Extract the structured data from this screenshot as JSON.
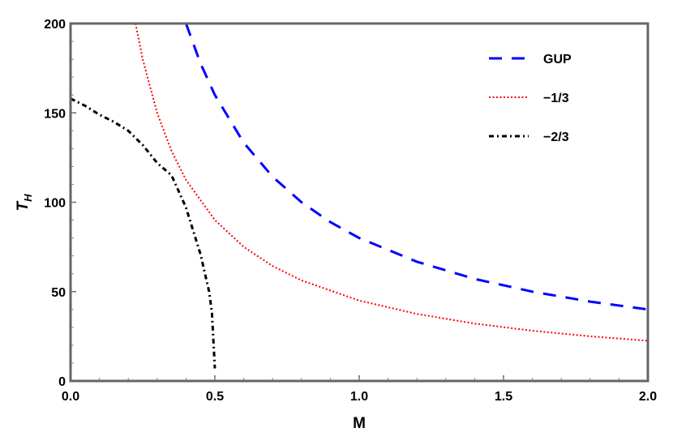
{
  "chart_data": {
    "type": "line",
    "xlabel": "M",
    "ylabel_main": "T",
    "ylabel_sub": "H",
    "xlim": [
      0,
      2.0
    ],
    "ylim": [
      0,
      200
    ],
    "x_ticks": [
      "0.0",
      "0.5",
      "1.0",
      "1.5",
      "2.0"
    ],
    "x_tick_values": [
      0,
      0.5,
      1.0,
      1.5,
      2.0
    ],
    "y_ticks": [
      "0",
      "50",
      "100",
      "150",
      "200"
    ],
    "y_tick_values": [
      0,
      50,
      100,
      150,
      200
    ],
    "grid": false,
    "legend_position": "top-right",
    "series": [
      {
        "name": "GUP",
        "color": "#0000ff",
        "style": "dashed",
        "x": [
          0.4,
          0.45,
          0.5,
          0.6,
          0.7,
          0.8,
          0.9,
          1.0,
          1.2,
          1.4,
          1.6,
          1.8,
          2.0
        ],
        "y": [
          200,
          177.8,
          160,
          133.3,
          114.3,
          100,
          88.9,
          80,
          66.7,
          57.1,
          50,
          44.4,
          40
        ]
      },
      {
        "name": "−1/3",
        "color": "#ff0000",
        "style": "dotted",
        "x": [
          0.225,
          0.25,
          0.3,
          0.35,
          0.4,
          0.5,
          0.6,
          0.7,
          0.8,
          1.0,
          1.2,
          1.4,
          1.6,
          1.8,
          2.0
        ],
        "y": [
          200,
          180,
          150,
          128.6,
          112.5,
          90,
          75,
          64.3,
          56.3,
          45,
          37.5,
          32.1,
          28.1,
          25,
          22.5
        ]
      },
      {
        "name": "−2/3",
        "color": "#000000",
        "style": "dashdot",
        "x": [
          0,
          0.05,
          0.1,
          0.15,
          0.2,
          0.25,
          0.3,
          0.35,
          0.4,
          0.45,
          0.48,
          0.49,
          0.5
        ],
        "y": [
          158,
          154,
          149,
          145,
          140,
          132,
          122,
          115,
          97,
          71,
          50,
          38,
          7
        ]
      }
    ]
  }
}
